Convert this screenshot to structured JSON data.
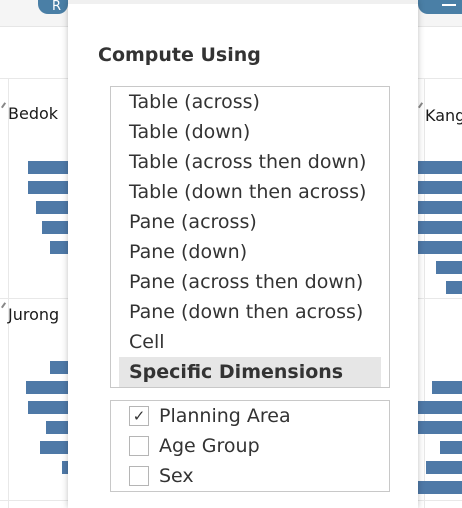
{
  "background": {
    "top_pill_label": "R",
    "panels": {
      "bedok": "Bedok",
      "kang": "Kang",
      "jurong": "Jurong"
    }
  },
  "dialog": {
    "title": "Compute Using",
    "options": [
      {
        "label": "Table (across)",
        "selected": false
      },
      {
        "label": "Table (down)",
        "selected": false
      },
      {
        "label": "Table (across then down)",
        "selected": false
      },
      {
        "label": "Table (down then across)",
        "selected": false
      },
      {
        "label": "Pane (across)",
        "selected": false
      },
      {
        "label": "Pane (down)",
        "selected": false
      },
      {
        "label": "Pane (across then down)",
        "selected": false
      },
      {
        "label": "Pane (down then across)",
        "selected": false
      },
      {
        "label": "Cell",
        "selected": false
      },
      {
        "label": "Specific Dimensions",
        "selected": true
      }
    ],
    "dimensions": [
      {
        "label": "Planning Area",
        "checked": true
      },
      {
        "label": "Age Group",
        "checked": false
      },
      {
        "label": "Sex",
        "checked": false
      }
    ],
    "check_glyph": "✓"
  },
  "colors": {
    "bar": "#4e79a7",
    "accent": "#4a7fa6"
  }
}
